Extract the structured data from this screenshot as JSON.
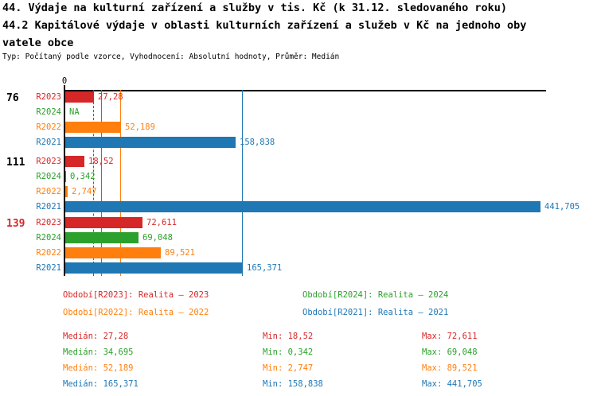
{
  "header": {
    "title": "44. Výdaje na kulturní zařízení a služby v tis. Kč (k 31.12. sledovaného roku)",
    "subtitle_line1": "44.2 Kapitálové výdaje v oblasti kulturních zařízení a služeb v Kč na jednoho oby",
    "subtitle_line2": "vatele obce",
    "meta": "Typ: Počítaný podle vzorce, Vyhodnocení: Absolutní hodnoty, Průměr: Medián"
  },
  "colors": {
    "r2023": "#d62728",
    "r2024": "#2ca02c",
    "r2022": "#ff7f0e",
    "r2021": "#1f77b4",
    "black": "#000000"
  },
  "chart_data": {
    "type": "bar",
    "orientation": "horizontal",
    "axis": {
      "origin_label": "0",
      "min": 0,
      "max": 447
    },
    "grid": false,
    "legend_position": "bottom",
    "groups": [
      {
        "label": "76",
        "label_color": "#000000",
        "bars": [
          {
            "series": "R2023",
            "value": 27.28,
            "value_text": "27,28",
            "color": "#d62728"
          },
          {
            "series": "R2024",
            "value": null,
            "value_text": "NA",
            "color": "#2ca02c"
          },
          {
            "series": "R2022",
            "value": 52.189,
            "value_text": "52,189",
            "color": "#ff7f0e"
          },
          {
            "series": "R2021",
            "value": 158.838,
            "value_text": "158,838",
            "color": "#1f77b4"
          }
        ]
      },
      {
        "label": "111",
        "label_color": "#000000",
        "bars": [
          {
            "series": "R2023",
            "value": 18.52,
            "value_text": "18,52",
            "color": "#d62728"
          },
          {
            "series": "R2024",
            "value": 0.342,
            "value_text": "0,342",
            "color": "#2ca02c"
          },
          {
            "series": "R2022",
            "value": 2.747,
            "value_text": "2,747",
            "color": "#ff7f0e"
          },
          {
            "series": "R2021",
            "value": 441.705,
            "value_text": "441,705",
            "color": "#1f77b4"
          }
        ]
      },
      {
        "label": "139",
        "label_color": "#d62728",
        "bars": [
          {
            "series": "R2023",
            "value": 72.611,
            "value_text": "72,611",
            "color": "#d62728"
          },
          {
            "series": "R2024",
            "value": 69.048,
            "value_text": "69,048",
            "color": "#2ca02c"
          },
          {
            "series": "R2022",
            "value": 89.521,
            "value_text": "89,521",
            "color": "#ff7f0e"
          },
          {
            "series": "R2021",
            "value": 165.371,
            "value_text": "165,371",
            "color": "#1f77b4"
          }
        ]
      }
    ],
    "median_lines": [
      {
        "series": "R2023",
        "value": 27.28,
        "color": "#d62728",
        "style": "dashed"
      },
      {
        "series": "R2024",
        "value": 34.695,
        "color": "#2ca02c",
        "style": "solid"
      },
      {
        "series": "R2022",
        "value": 52.189,
        "color": "#ff7f0e",
        "style": "solid"
      },
      {
        "series": "R2021",
        "value": 165.371,
        "color": "#1f77b4",
        "style": "solid"
      }
    ]
  },
  "legend": {
    "items": [
      {
        "text": "Období[R2023]: Realita – 2023",
        "color": "#d62728"
      },
      {
        "text": "Období[R2024]: Realita – 2024",
        "color": "#2ca02c"
      },
      {
        "text": "Období[R2022]: Realita – 2022",
        "color": "#ff7f0e"
      },
      {
        "text": "Období[R2021]: Realita – 2021",
        "color": "#1f77b4"
      }
    ]
  },
  "stats": {
    "rows": [
      {
        "color": "#d62728",
        "median": "Medián: 27,28",
        "min": "Min: 18,52",
        "max": "Max: 72,611"
      },
      {
        "color": "#2ca02c",
        "median": "Medián: 34,695",
        "min": "Min: 0,342",
        "max": "Max: 69,048"
      },
      {
        "color": "#ff7f0e",
        "median": "Medián: 52,189",
        "min": "Min: 2,747",
        "max": "Max: 89,521"
      },
      {
        "color": "#1f77b4",
        "median": "Medián: 165,371",
        "min": "Min: 158,838",
        "max": "Max: 441,705"
      }
    ]
  }
}
